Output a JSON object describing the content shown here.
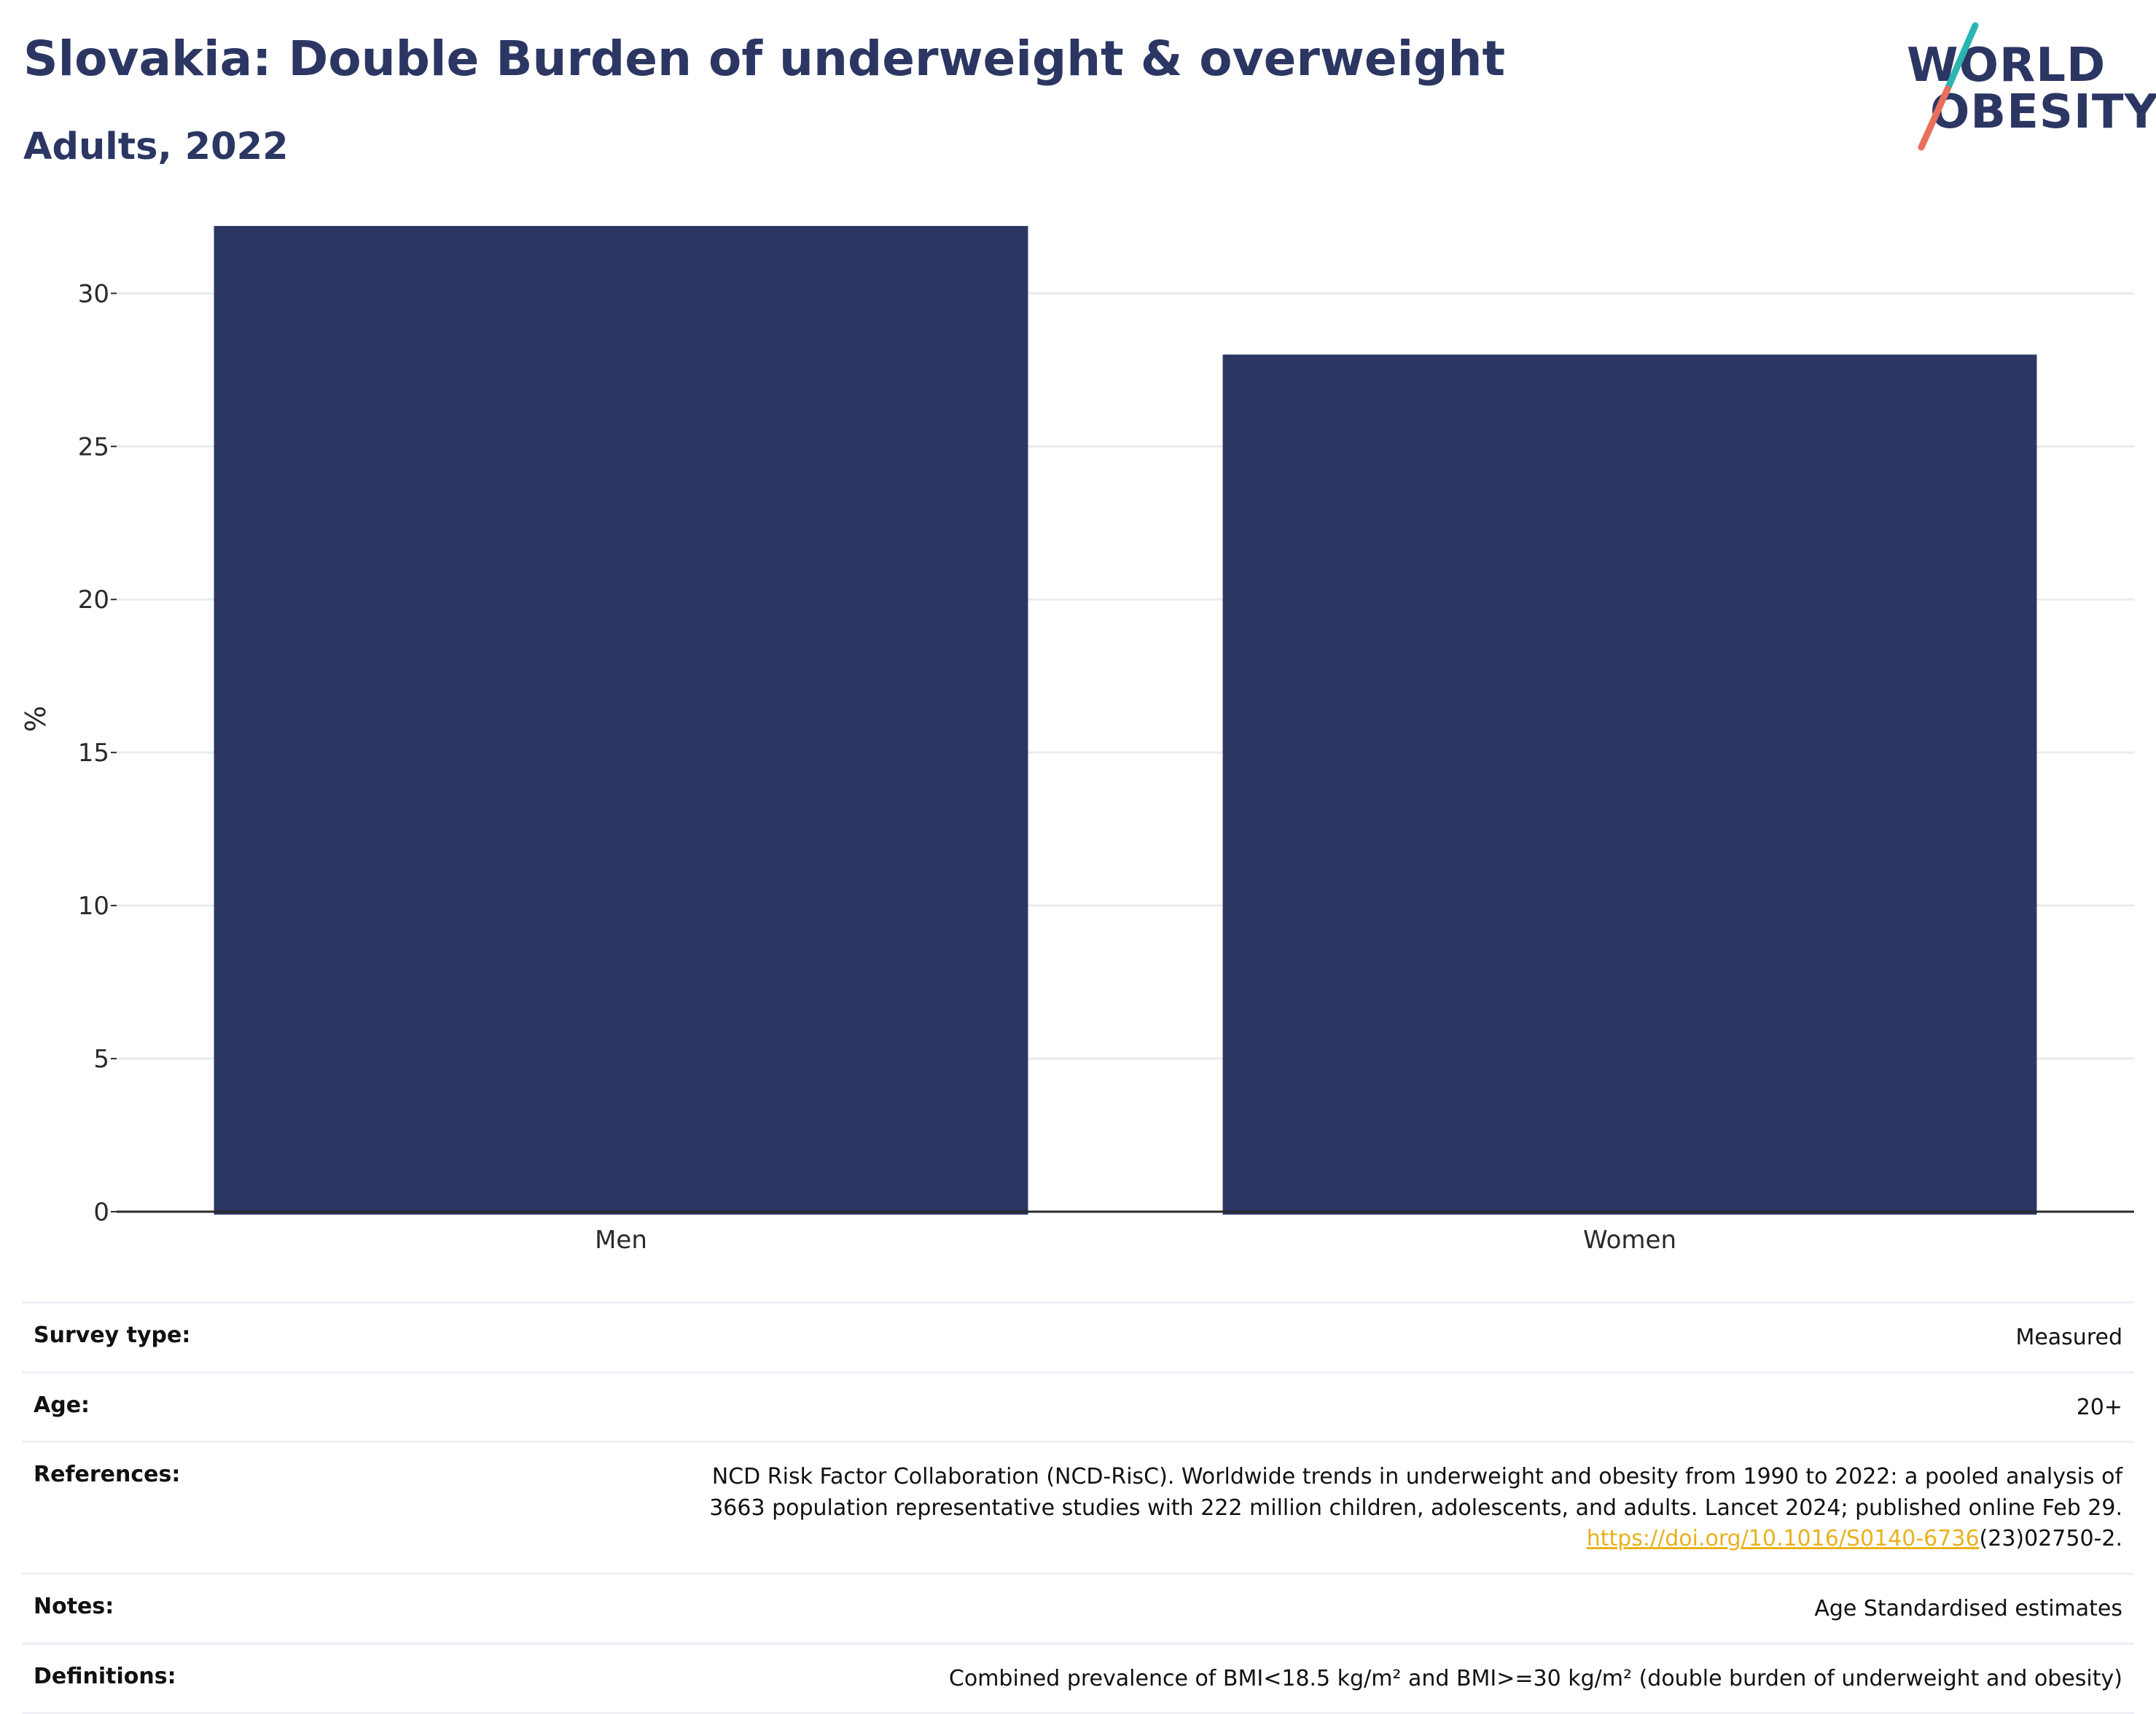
{
  "header": {
    "title": "Slovakia: Double Burden of underweight & overweight",
    "subtitle": "Adults, 2022"
  },
  "logo": {
    "line1": "WORLD",
    "line2": "OBESITY",
    "colors": {
      "text": "#2b3663",
      "slash_top": "#2bb5b0",
      "slash_bottom": "#e8705a"
    }
  },
  "colors": {
    "bar": "#2b3663",
    "grid": "#e9ebf0",
    "axis": "#2a2a2a",
    "link": "#e8b21f"
  },
  "chart_data": {
    "type": "bar",
    "categories": [
      "Men",
      "Women"
    ],
    "values": [
      32.2,
      28.0
    ],
    "title": "Slovakia: Double Burden of underweight & overweight",
    "subtitle": "Adults, 2022",
    "xlabel": "",
    "ylabel": "%",
    "ylim": [
      0,
      32.2
    ],
    "yticks": [
      0,
      5,
      10,
      15,
      20,
      25,
      30
    ],
    "grid": true,
    "legend": "none"
  },
  "meta": {
    "survey_type": {
      "label": "Survey type:",
      "value": "Measured"
    },
    "age": {
      "label": "Age:",
      "value": "20+"
    },
    "references": {
      "label": "References:",
      "line1": "NCD Risk Factor Collaboration (NCD-RisC). Worldwide trends in underweight and obesity from 1990 to 2022: a pooled analysis of",
      "line2": "3663 population representative studies with 222 million children, adolescents, and adults. Lancet 2024; published online Feb 29.",
      "link": "https://doi.org/10.1016/S0140-6736",
      "link_suffix": "(23)02750-2."
    },
    "notes": {
      "label": "Notes:",
      "value": "Age Standardised estimates"
    },
    "definitions": {
      "label": "Definitions:",
      "value": "Combined prevalence of BMI<18.5 kg/m² and BMI>=30 kg/m² (double burden of underweight and obesity)"
    }
  }
}
